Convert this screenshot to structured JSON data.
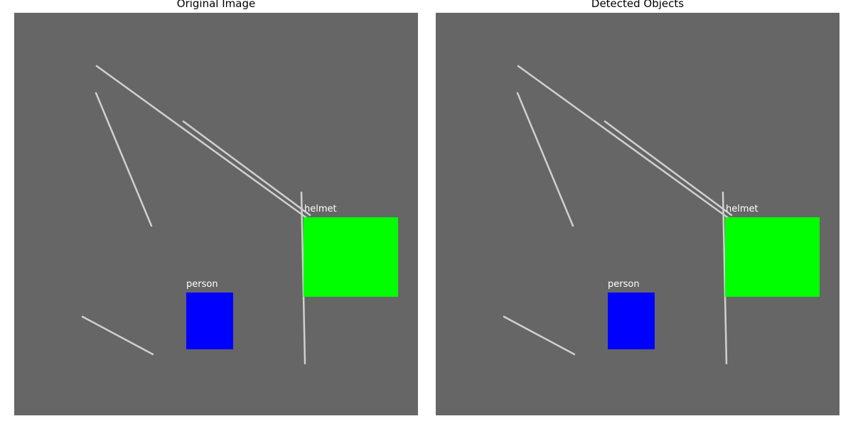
{
  "panels": [
    {
      "title": "Original Image"
    },
    {
      "title": "Detected Objects"
    }
  ],
  "scene": {
    "background_color": "#666666",
    "line_color": "#d0d0d0",
    "objects": [
      {
        "label": "helmet",
        "color": "#00ff00"
      },
      {
        "label": "person",
        "color": "#0000ff"
      }
    ]
  }
}
